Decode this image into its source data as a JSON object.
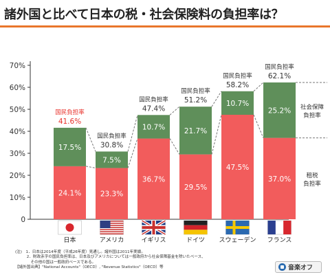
{
  "page_title": "諸外国と比べて日本の税・社会保険料の負担率は？",
  "chart_data": {
    "type": "bar",
    "stacked": true,
    "categories": [
      "日本",
      "アメリカ",
      "イギリス",
      "ドイツ",
      "スウェーデン",
      "フランス"
    ],
    "flags": [
      "japan-flag-icon",
      "usa-flag-icon",
      "uk-flag-icon",
      "germany-flag-icon",
      "sweden-flag-icon",
      "france-flag-icon"
    ],
    "series": [
      {
        "name": "租税負担率",
        "color": "#f25c5c",
        "values": [
          24.1,
          23.3,
          36.7,
          29.5,
          47.5,
          37.0
        ],
        "labels": [
          "24.1%",
          "23.3%",
          "36.7%",
          "29.5%",
          "47.5%",
          "37.0%"
        ]
      },
      {
        "name": "社会保障負担率",
        "color": "#5f8f5a",
        "values": [
          17.5,
          7.5,
          10.7,
          21.7,
          10.7,
          25.2
        ],
        "labels": [
          "17.5%",
          "7.5%",
          "10.7%",
          "21.7%",
          "10.7%",
          "25.2%"
        ]
      }
    ],
    "totals": [
      41.6,
      30.8,
      47.4,
      51.2,
      58.2,
      62.1
    ],
    "total_labels": [
      "41.6%",
      "30.8%",
      "47.4%",
      "51.2%",
      "58.2%",
      "62.1%"
    ],
    "total_caption": "国民負担率",
    "highlight_color": "#e8302a",
    "ylim": [
      0,
      70
    ],
    "yticks": [
      "0",
      "10%",
      "20%",
      "30%",
      "40%",
      "50%",
      "60%",
      "70%"
    ],
    "legend_right": {
      "social": [
        "社会保障",
        "負担率"
      ],
      "tax": [
        "租税",
        "負担率"
      ]
    }
  },
  "notes": [
    "(注)　1．日本は2014年度（平成26年度）見通し。諸外国は2011年実績。",
    "　　　2．財政赤字の国民負担率は、日本及びアメリカについては一般政府から社会保障基金を除いたベース、",
    "　　　　その他の国は一般政府ベースである。",
    "【諸外国出典】\"National Accounts\"（OECD）, \"Revenue Statistics\"（OECD）等"
  ],
  "sound_button": "音楽オフ"
}
